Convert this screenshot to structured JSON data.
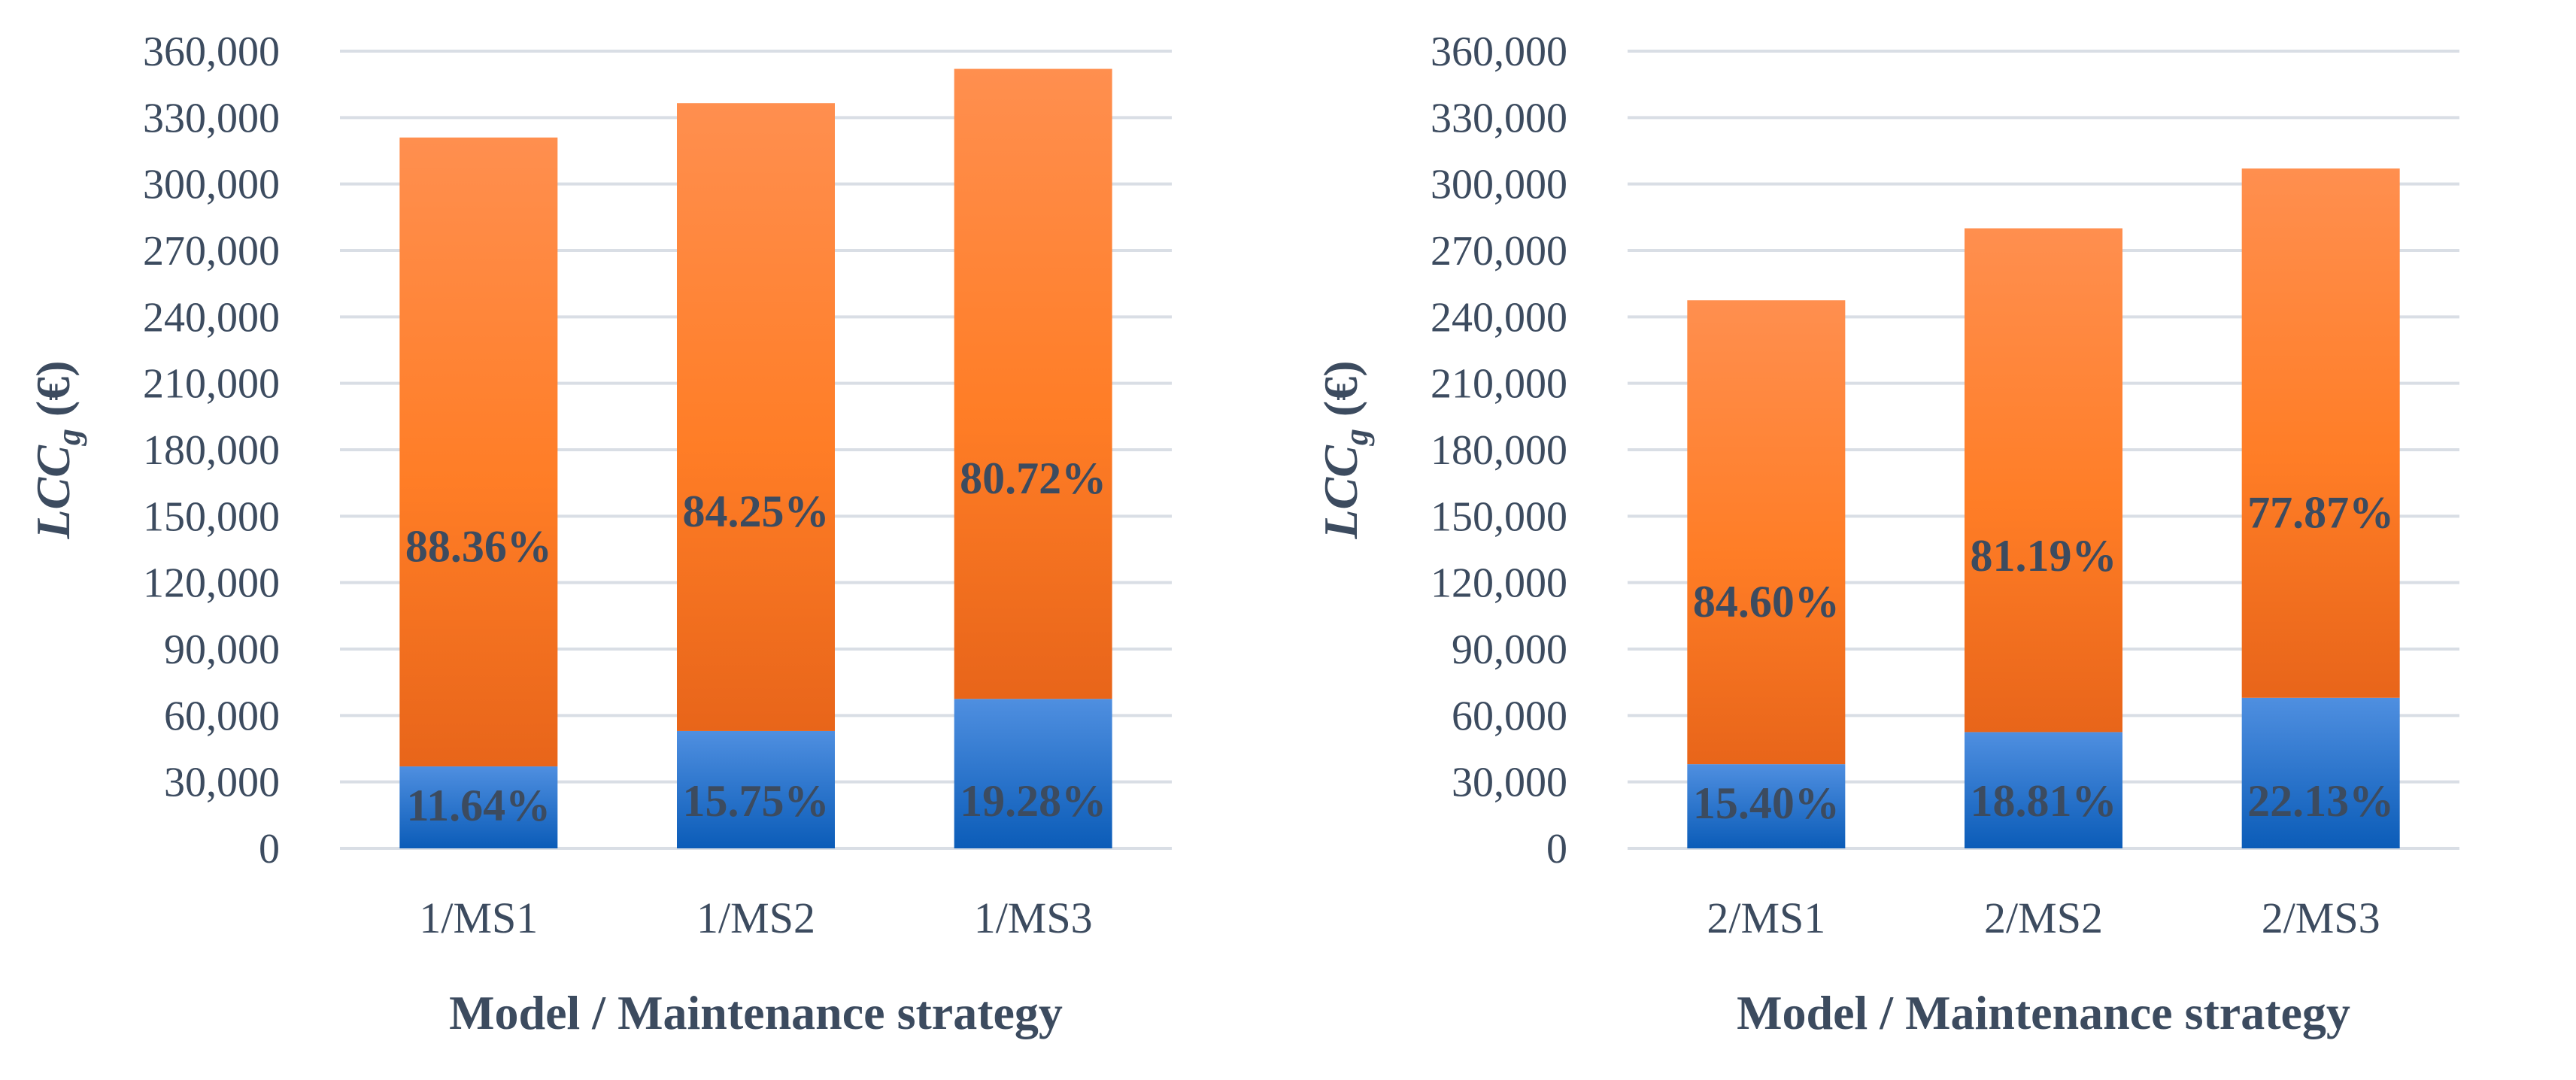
{
  "colors": {
    "blue_top": "#4f8fe0",
    "blue_bottom": "#0b5cb8",
    "orange_top": "#ff8f4f",
    "orange_bottom": "#e8651a",
    "text": "#3c4b5f",
    "grid": "#d9dee5"
  },
  "chart_data": [
    {
      "type": "bar",
      "stacked": true,
      "categories": [
        "1/MS1",
        "1/MS2",
        "1/MS3"
      ],
      "series": [
        {
          "values": [
            37000,
            53000,
            67500
          ],
          "labels": [
            "11.64%",
            "15.75%",
            "19.28%"
          ]
        },
        {
          "values": [
            284000,
            283500,
            284500
          ],
          "labels": [
            "88.36%",
            "84.25%",
            "80.72%"
          ]
        }
      ],
      "yticks": [
        "0",
        "30,000",
        "60,000",
        "90,000",
        "120,000",
        "150,000",
        "180,000",
        "210,000",
        "240,000",
        "270,000",
        "300,000",
        "330,000",
        "360,000"
      ],
      "ylim": [
        0,
        360000
      ],
      "xlabel": "Model / Maintenance strategy",
      "ylabel_main": "LCC",
      "ylabel_sub": "g",
      "ylabel_unit": " (€)",
      "grid": true
    },
    {
      "type": "bar",
      "stacked": true,
      "categories": [
        "2/MS1",
        "2/MS2",
        "2/MS3"
      ],
      "series": [
        {
          "values": [
            38000,
            52500,
            68000
          ],
          "labels": [
            "15.40%",
            "18.81%",
            "22.13%"
          ]
        },
        {
          "values": [
            209500,
            227500,
            239000
          ],
          "labels": [
            "84.60%",
            "81.19%",
            "77.87%"
          ]
        }
      ],
      "yticks": [
        "0",
        "30,000",
        "60,000",
        "90,000",
        "120,000",
        "150,000",
        "180,000",
        "210,000",
        "240,000",
        "270,000",
        "300,000",
        "330,000",
        "360,000"
      ],
      "ylim": [
        0,
        360000
      ],
      "xlabel": "Model / Maintenance strategy",
      "ylabel_main": "LCC",
      "ylabel_sub": "g",
      "ylabel_unit": " (€)",
      "grid": true
    }
  ]
}
